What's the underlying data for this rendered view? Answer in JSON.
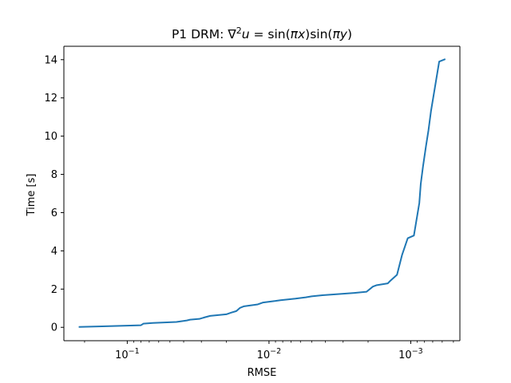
{
  "chart_data": {
    "type": "line",
    "title": "P1 DRM: ∇²u = sin(πx)sin(πy)",
    "xlabel": "RMSE",
    "ylabel": "Time [s]",
    "x_scale": "log",
    "x_inverted": true,
    "xlim": [
      0.28,
      0.00045
    ],
    "ylim": [
      -0.7,
      14.7
    ],
    "grid": false,
    "x_ticks": [
      {
        "value": 0.1,
        "label": "10⁻¹"
      },
      {
        "value": 0.01,
        "label": "10⁻²"
      },
      {
        "value": 0.001,
        "label": "10⁻³"
      }
    ],
    "y_ticks": [
      0,
      2,
      4,
      6,
      8,
      10,
      12,
      14
    ],
    "series": [
      {
        "color": "#1f77b4",
        "x": [
          0.22,
          0.15,
          0.08,
          0.077,
          0.066,
          0.045,
          0.038,
          0.036,
          0.031,
          0.0285,
          0.026,
          0.02,
          0.0185,
          0.017,
          0.016,
          0.015,
          0.012,
          0.011,
          0.009,
          0.0083,
          0.0065,
          0.0055,
          0.005,
          0.0042,
          0.0035,
          0.0025,
          0.00205,
          0.00185,
          0.00175,
          0.00145,
          0.0014,
          0.00125,
          0.00115,
          0.00105,
          0.00095,
          0.00087,
          0.00085,
          0.00082,
          0.00078,
          0.00075,
          0.00072,
          0.00063,
          0.00057
        ],
        "y": [
          0.02,
          0.05,
          0.11,
          0.19,
          0.23,
          0.28,
          0.36,
          0.4,
          0.44,
          0.52,
          0.6,
          0.68,
          0.77,
          0.85,
          1.02,
          1.1,
          1.2,
          1.3,
          1.38,
          1.42,
          1.5,
          1.57,
          1.62,
          1.68,
          1.72,
          1.8,
          1.86,
          2.13,
          2.2,
          2.3,
          2.42,
          2.75,
          3.8,
          4.66,
          4.8,
          6.5,
          7.5,
          8.4,
          9.5,
          10.3,
          11.3,
          13.9,
          14.03
        ]
      }
    ]
  }
}
